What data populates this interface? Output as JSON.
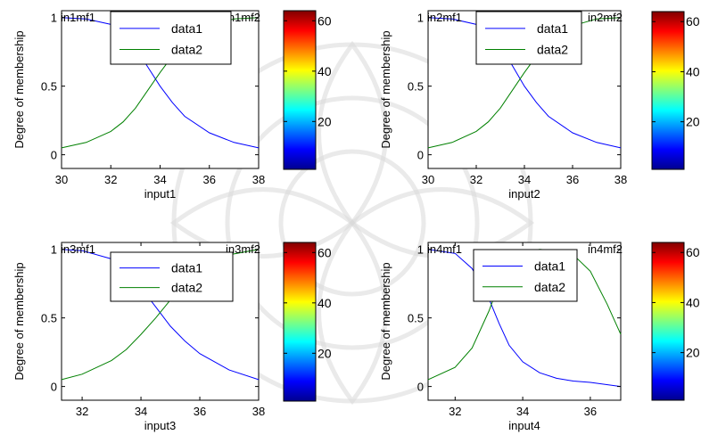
{
  "chart_data": [
    {
      "type": "line",
      "xlabel": "input1",
      "ylabel": "Degree of membership",
      "xlim": [
        30,
        38
      ],
      "ylim": [
        -0.1,
        1.05
      ],
      "xticks": [
        30,
        32,
        34,
        36,
        38
      ],
      "yticks": [
        0,
        0.5,
        1
      ],
      "ytick_labels": [
        "0",
        "0.5",
        "1"
      ],
      "mf_labels": [
        "in1mf1",
        "in1mf2"
      ],
      "legend": {
        "placement": "top-center",
        "entries": [
          "data1",
          "data2"
        ]
      },
      "series": [
        {
          "name": "data1",
          "color": "#0000ff",
          "x": [
            30,
            31,
            32,
            32.5,
            33,
            33.5,
            34,
            34.5,
            35,
            36,
            37,
            38
          ],
          "values": [
            1.0,
            0.99,
            0.95,
            0.89,
            0.78,
            0.64,
            0.5,
            0.38,
            0.28,
            0.16,
            0.09,
            0.05
          ]
        },
        {
          "name": "data2",
          "color": "#008000",
          "x": [
            30,
            31,
            32,
            32.5,
            33,
            33.5,
            34,
            34.5,
            35,
            36,
            37,
            38
          ],
          "values": [
            0.05,
            0.09,
            0.17,
            0.24,
            0.34,
            0.47,
            0.6,
            0.72,
            0.82,
            0.94,
            0.99,
            1.0
          ]
        }
      ],
      "colorbar": {
        "ticks": [
          20,
          40,
          60
        ],
        "range": [
          1,
          64
        ]
      }
    },
    {
      "type": "line",
      "xlabel": "input2",
      "ylabel": "Degree of membership",
      "xlim": [
        30,
        38
      ],
      "ylim": [
        -0.1,
        1.05
      ],
      "xticks": [
        30,
        32,
        34,
        36,
        38
      ],
      "yticks": [
        0,
        0.5,
        1
      ],
      "ytick_labels": [
        "0",
        "0.5",
        "1"
      ],
      "mf_labels": [
        "in2mf1",
        "in2mf2"
      ],
      "legend": {
        "placement": "top-center",
        "entries": [
          "data1",
          "data2"
        ]
      },
      "series": [
        {
          "name": "data1",
          "color": "#0000ff",
          "x": [
            30,
            31,
            32,
            32.5,
            33,
            33.5,
            34,
            34.5,
            35,
            36,
            37,
            38
          ],
          "values": [
            1.0,
            0.99,
            0.95,
            0.89,
            0.79,
            0.65,
            0.5,
            0.38,
            0.28,
            0.16,
            0.09,
            0.05
          ]
        },
        {
          "name": "data2",
          "color": "#008000",
          "x": [
            30,
            31,
            32,
            32.5,
            33,
            33.5,
            34,
            34.5,
            35,
            36,
            37,
            38
          ],
          "values": [
            0.05,
            0.09,
            0.17,
            0.24,
            0.34,
            0.47,
            0.6,
            0.72,
            0.82,
            0.94,
            0.99,
            1.0
          ]
        }
      ],
      "colorbar": {
        "ticks": [
          20,
          40,
          60
        ],
        "range": [
          1,
          64
        ]
      }
    },
    {
      "type": "line",
      "xlabel": "input3",
      "ylabel": "Degree of membership",
      "xlim": [
        31.3,
        38
      ],
      "ylim": [
        -0.1,
        1.05
      ],
      "xticks": [
        32,
        34,
        36,
        38
      ],
      "yticks": [
        0,
        0.5,
        1
      ],
      "ytick_labels": [
        "0",
        "0.5",
        "1"
      ],
      "mf_labels": [
        "in3mf1",
        "in3mf2"
      ],
      "legend": {
        "placement": "top-center",
        "entries": [
          "data1",
          "data2"
        ]
      },
      "series": [
        {
          "name": "data1",
          "color": "#0000ff",
          "x": [
            31.3,
            32,
            33,
            33.5,
            34,
            34.5,
            35,
            35.5,
            36,
            37,
            38
          ],
          "values": [
            1.0,
            0.99,
            0.93,
            0.85,
            0.72,
            0.58,
            0.44,
            0.33,
            0.24,
            0.12,
            0.05
          ]
        },
        {
          "name": "data2",
          "color": "#008000",
          "x": [
            31.3,
            32,
            33,
            33.5,
            34,
            34.5,
            35,
            35.5,
            36,
            37,
            38
          ],
          "values": [
            0.05,
            0.09,
            0.19,
            0.27,
            0.38,
            0.5,
            0.63,
            0.74,
            0.84,
            0.96,
            1.0
          ]
        }
      ],
      "colorbar": {
        "ticks": [
          20,
          40,
          60
        ],
        "range": [
          1,
          64
        ]
      }
    },
    {
      "type": "line",
      "xlabel": "input4",
      "ylabel": "Degree of membership",
      "xlim": [
        31.2,
        36.9
      ],
      "ylim": [
        -0.1,
        1.05
      ],
      "xticks": [
        32,
        34,
        36
      ],
      "yticks": [
        0,
        0.5,
        1
      ],
      "ytick_labels": [
        "0",
        "0.5",
        "1"
      ],
      "mf_labels": [
        "in4mf1",
        "in4mf2"
      ],
      "legend": {
        "placement": "top-center",
        "entries": [
          "data1",
          "data2"
        ]
      },
      "series": [
        {
          "name": "data1",
          "color": "#0000ff",
          "x": [
            31.2,
            32,
            32.5,
            33,
            33.3,
            33.6,
            34,
            34.5,
            35,
            35.5,
            36,
            36.9
          ],
          "values": [
            1.0,
            0.97,
            0.86,
            0.64,
            0.46,
            0.3,
            0.18,
            0.1,
            0.06,
            0.04,
            0.03,
            0.0
          ]
        },
        {
          "name": "data2",
          "color": "#008000",
          "x": [
            31.2,
            32,
            32.5,
            33,
            33.3,
            33.6,
            34,
            34.5,
            35,
            35.5,
            36,
            36.5,
            36.9
          ],
          "values": [
            0.05,
            0.14,
            0.28,
            0.55,
            0.75,
            0.9,
            0.98,
            1.0,
            0.99,
            0.96,
            0.84,
            0.6,
            0.38
          ]
        }
      ],
      "colorbar": {
        "ticks": [
          20,
          40,
          60
        ],
        "range": [
          1,
          64
        ]
      }
    }
  ]
}
